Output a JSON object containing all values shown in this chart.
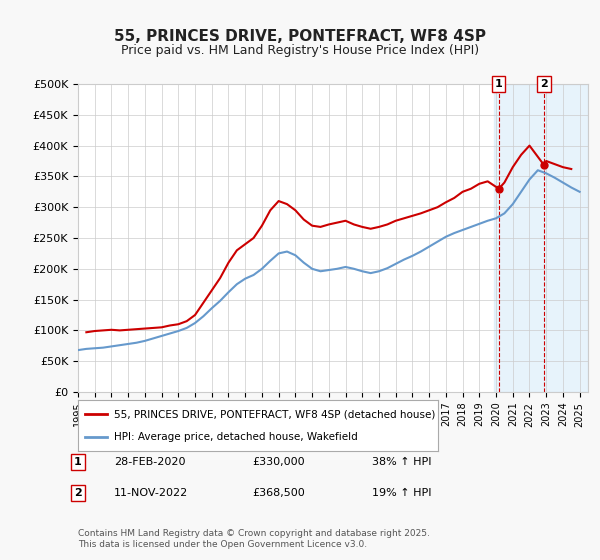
{
  "title": "55, PRINCES DRIVE, PONTEFRACT, WF8 4SP",
  "subtitle": "Price paid vs. HM Land Registry's House Price Index (HPI)",
  "ylabel_ticks": [
    "£0",
    "£50K",
    "£100K",
    "£150K",
    "£200K",
    "£250K",
    "£300K",
    "£350K",
    "£400K",
    "£450K",
    "£500K"
  ],
  "ytick_values": [
    0,
    50000,
    100000,
    150000,
    200000,
    250000,
    300000,
    350000,
    400000,
    450000,
    500000
  ],
  "ylim": [
    0,
    500000
  ],
  "xlim_start": 1995.0,
  "xlim_end": 2025.5,
  "legend_entry1": "55, PRINCES DRIVE, PONTEFRACT, WF8 4SP (detached house)",
  "legend_entry2": "HPI: Average price, detached house, Wakefield",
  "red_color": "#cc0000",
  "blue_color": "#6699cc",
  "vline1_x": 2020.167,
  "vline2_x": 2022.867,
  "marker1_label": "1",
  "marker2_label": "2",
  "annotation1_date": "28-FEB-2020",
  "annotation1_price": "£330,000",
  "annotation1_hpi": "38% ↑ HPI",
  "annotation2_date": "11-NOV-2022",
  "annotation2_price": "£368,500",
  "annotation2_hpi": "19% ↑ HPI",
  "footer": "Contains HM Land Registry data © Crown copyright and database right 2025.\nThis data is licensed under the Open Government Licence v3.0.",
  "background_color": "#f8f8f8",
  "plot_bg_color": "#ffffff",
  "shade_x1": 2019.9,
  "shade_x2": 2025.5,
  "red_data": {
    "x": [
      1995.5,
      1996.0,
      1996.5,
      1997.0,
      1997.5,
      1998.0,
      1998.5,
      1999.0,
      1999.5,
      2000.0,
      2000.5,
      2001.0,
      2001.5,
      2002.0,
      2002.5,
      2003.0,
      2003.5,
      2004.0,
      2004.5,
      2005.0,
      2005.5,
      2006.0,
      2006.5,
      2007.0,
      2007.5,
      2008.0,
      2008.5,
      2009.0,
      2009.5,
      2010.0,
      2010.5,
      2011.0,
      2011.5,
      2012.0,
      2012.5,
      2013.0,
      2013.5,
      2014.0,
      2014.5,
      2015.0,
      2015.5,
      2016.0,
      2016.5,
      2017.0,
      2017.5,
      2018.0,
      2018.5,
      2019.0,
      2019.5,
      2020.167,
      2020.5,
      2021.0,
      2021.5,
      2022.0,
      2022.867,
      2023.0,
      2023.5,
      2024.0,
      2024.5
    ],
    "y": [
      97000,
      99000,
      100000,
      101000,
      100000,
      101000,
      102000,
      103000,
      104000,
      105000,
      108000,
      110000,
      115000,
      125000,
      145000,
      165000,
      185000,
      210000,
      230000,
      240000,
      250000,
      270000,
      295000,
      310000,
      305000,
      295000,
      280000,
      270000,
      268000,
      272000,
      275000,
      278000,
      272000,
      268000,
      265000,
      268000,
      272000,
      278000,
      282000,
      286000,
      290000,
      295000,
      300000,
      308000,
      315000,
      325000,
      330000,
      338000,
      342000,
      330000,
      340000,
      365000,
      385000,
      400000,
      368500,
      375000,
      370000,
      365000,
      362000
    ]
  },
  "blue_data": {
    "x": [
      1995.0,
      1995.5,
      1996.0,
      1996.5,
      1997.0,
      1997.5,
      1998.0,
      1998.5,
      1999.0,
      1999.5,
      2000.0,
      2000.5,
      2001.0,
      2001.5,
      2002.0,
      2002.5,
      2003.0,
      2003.5,
      2004.0,
      2004.5,
      2005.0,
      2005.5,
      2006.0,
      2006.5,
      2007.0,
      2007.5,
      2008.0,
      2008.5,
      2009.0,
      2009.5,
      2010.0,
      2010.5,
      2011.0,
      2011.5,
      2012.0,
      2012.5,
      2013.0,
      2013.5,
      2014.0,
      2014.5,
      2015.0,
      2015.5,
      2016.0,
      2016.5,
      2017.0,
      2017.5,
      2018.0,
      2018.5,
      2019.0,
      2019.5,
      2020.0,
      2020.5,
      2021.0,
      2021.5,
      2022.0,
      2022.5,
      2023.0,
      2023.5,
      2024.0,
      2024.5,
      2025.0
    ],
    "y": [
      68000,
      70000,
      71000,
      72000,
      74000,
      76000,
      78000,
      80000,
      83000,
      87000,
      91000,
      95000,
      99000,
      104000,
      112000,
      123000,
      136000,
      148000,
      162000,
      175000,
      184000,
      190000,
      200000,
      213000,
      225000,
      228000,
      222000,
      210000,
      200000,
      196000,
      198000,
      200000,
      203000,
      200000,
      196000,
      193000,
      196000,
      201000,
      208000,
      215000,
      221000,
      228000,
      236000,
      244000,
      252000,
      258000,
      263000,
      268000,
      273000,
      278000,
      282000,
      290000,
      305000,
      325000,
      345000,
      360000,
      355000,
      348000,
      340000,
      332000,
      325000
    ]
  }
}
